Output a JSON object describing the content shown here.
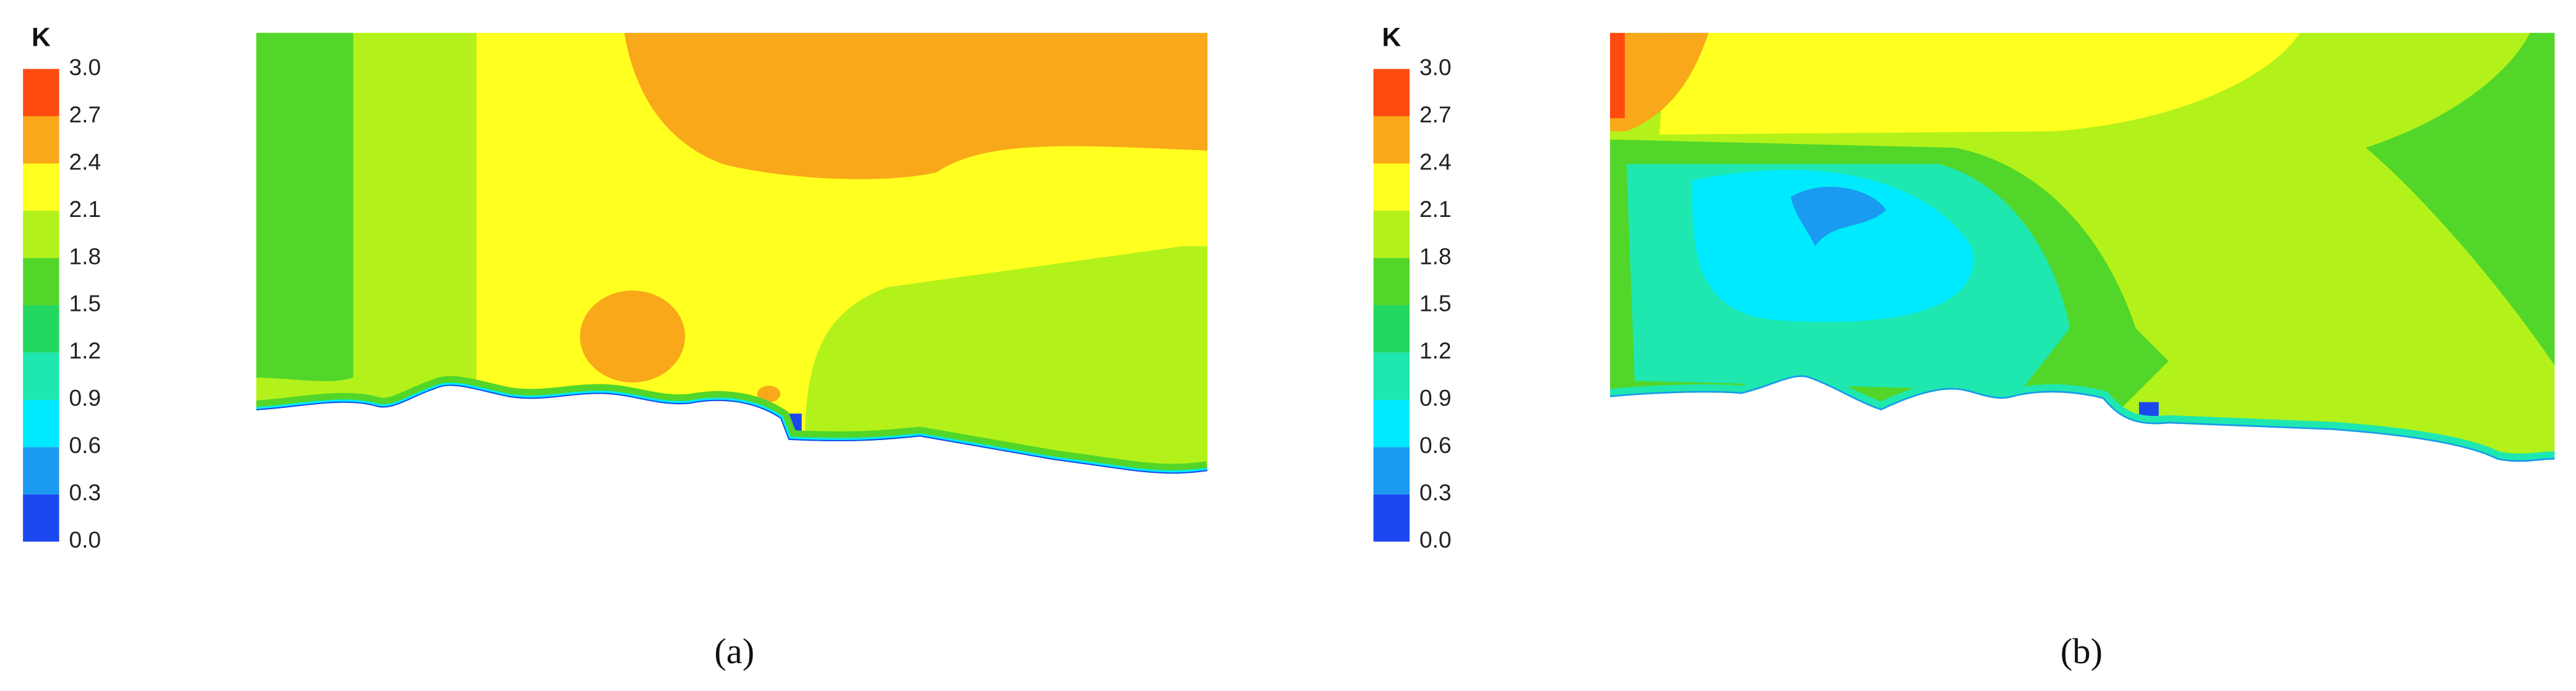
{
  "chart_data": [
    {
      "type": "contour",
      "panel_label": "(a)",
      "colorbar": {
        "title": "K",
        "ticks": [
          {
            "value": 0,
            "label": "0.0"
          },
          {
            "value": 0.3,
            "label": "0.3"
          },
          {
            "value": 0.6,
            "label": "0.6"
          },
          {
            "value": 0.9,
            "label": "0.9"
          },
          {
            "value": 1.2,
            "label": "1.2"
          },
          {
            "value": 1.5,
            "label": "1.5"
          },
          {
            "value": 1.8,
            "label": "1.8"
          },
          {
            "value": 2.1,
            "label": "2.1"
          },
          {
            "value": 2.4,
            "label": "2.4"
          },
          {
            "value": 2.7,
            "label": "2.7"
          },
          {
            "value": 3,
            "label": "3.0"
          }
        ],
        "colors": [
          "#1a47f0",
          "#1a9af0",
          "#00eaff",
          "#1ee8b0",
          "#22d860",
          "#52d62a",
          "#b2f21a",
          "#ffff20",
          "#f8a818",
          "#ff4a10"
        ]
      }
    },
    {
      "type": "contour",
      "panel_label": "(b)",
      "colorbar": {
        "title": "K",
        "ticks": [
          {
            "value": 0,
            "label": "0.0"
          },
          {
            "value": 0.3,
            "label": "0.3"
          },
          {
            "value": 0.6,
            "label": "0.6"
          },
          {
            "value": 0.9,
            "label": "0.9"
          },
          {
            "value": 1.2,
            "label": "1.2"
          },
          {
            "value": 1.5,
            "label": "1.5"
          },
          {
            "value": 1.8,
            "label": "1.8"
          },
          {
            "value": 2.1,
            "label": "2.1"
          },
          {
            "value": 2.4,
            "label": "2.4"
          },
          {
            "value": 2.7,
            "label": "2.7"
          },
          {
            "value": 3,
            "label": "3.0"
          }
        ],
        "colors": [
          "#1a47f0",
          "#1a9af0",
          "#00eaff",
          "#1ee8b0",
          "#22d860",
          "#52d62a",
          "#b2f21a",
          "#ffff20",
          "#f8a818",
          "#ff4a10"
        ]
      }
    }
  ]
}
